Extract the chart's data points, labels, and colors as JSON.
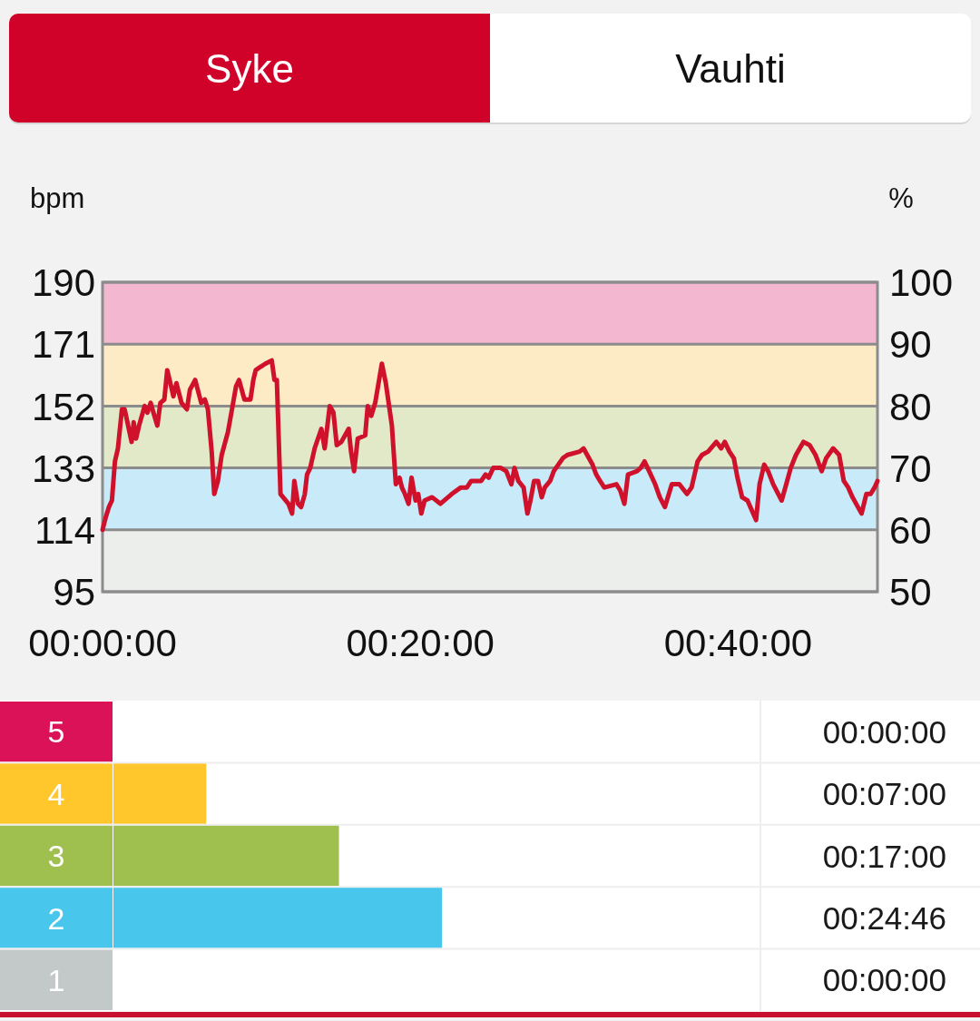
{
  "chart_data": [
    {
      "type": "line",
      "annotations": [
        "Syke",
        "Vauhti"
      ],
      "ylabel": "bpm",
      "y2label": "%",
      "color": "#d0112b",
      "x": [
        0,
        0.21,
        0.4,
        0.59,
        0.78,
        0.97,
        1.22,
        1.39,
        1.83,
        1.96,
        2.11,
        2.3,
        2.65,
        2.82,
        3.03,
        3.2,
        3.45,
        3.64,
        3.89,
        4.07,
        4.27,
        4.46,
        4.65,
        4.97,
        5.31,
        5.5,
        5.83,
        6.21,
        6.44,
        6.63,
        6.87,
        7.03,
        7.26,
        7.5,
        7.89,
        8.11,
        8.4,
        8.59,
        8.93,
        9.31,
        9.49,
        9.64,
        9.93,
        10.25,
        10.65,
        10.82,
        10.97,
        11.2,
        11.7,
        11.93,
        12.07,
        12.3,
        12.5,
        12.73,
        12.87,
        13.07,
        13.35,
        13.77,
        13.98,
        14.3,
        14.53,
        14.74,
        15.03,
        15.49,
        15.64,
        15.83,
        16.06,
        16.53,
        16.69,
        16.91,
        17.16,
        17.58,
        17.83,
        18.21,
        18.46,
        18.69,
        18.84,
        19.03,
        19.26,
        19.45,
        19.7,
        19.87,
        20.06,
        20.27,
        20.74,
        21.26,
        21.98,
        22.55,
        22.93,
        23.2,
        23.83,
        24.11,
        24.3,
        24.59,
        25.07,
        25.41,
        25.73,
        25.93,
        26.17,
        26.5,
        26.74,
        26.93,
        27.16,
        27.41,
        27.64,
        27.83,
        28.17,
        28.4,
        28.97,
        29.26,
        30.02,
        30.27,
        30.84,
        31.07,
        31.31,
        31.58,
        32.34,
        32.59,
        32.84,
        33.07,
        33.64,
        33.87,
        34.11,
        34.4,
        34.78,
        35.07,
        35.39,
        35.83,
        36.3,
        36.78,
        37.07,
        37.45,
        37.73,
        38.11,
        38.63,
        38.93,
        39.16,
        39.45,
        39.73,
        39.96,
        40.25,
        40.59,
        41.13,
        41.35,
        41.64,
        41.89,
        42.21,
        42.74,
        43.03,
        43.31,
        43.64,
        44.11,
        44.5,
        44.87,
        45.26,
        45.54,
        45.98,
        46.36,
        46.65,
        46.93,
        47.2,
        47.77,
        48.07,
        48.34,
        48.59,
        48.77
      ],
      "values": [
        114,
        118,
        121,
        123,
        135,
        139,
        151,
        151,
        141,
        147,
        142,
        146,
        152,
        150,
        153,
        150,
        146,
        153,
        154,
        163,
        159,
        155,
        159,
        153,
        151,
        157,
        160,
        153,
        154,
        151,
        138,
        125,
        129,
        137,
        144,
        150,
        158,
        160,
        154,
        154,
        160,
        163,
        164,
        165,
        166,
        160,
        160,
        125,
        122,
        119,
        129,
        122,
        121,
        125,
        131,
        133,
        139,
        145,
        139,
        152,
        150,
        140,
        141,
        145,
        138,
        132,
        142,
        143,
        152,
        149,
        153,
        165,
        159,
        146,
        128,
        130,
        127,
        125,
        122,
        130,
        123,
        125,
        119,
        123,
        124,
        122,
        125,
        127,
        127,
        129,
        129,
        131,
        130,
        133,
        133,
        132,
        128,
        133,
        129,
        127,
        119,
        123,
        129,
        129,
        124,
        127,
        129,
        132,
        136,
        137,
        138,
        139,
        134,
        131,
        129,
        127,
        128,
        126,
        122,
        131,
        132,
        133,
        135,
        132,
        128,
        124,
        121,
        128,
        128,
        125,
        127,
        135,
        137,
        138,
        141,
        139,
        141,
        138,
        136,
        130,
        124,
        123,
        117,
        128,
        134,
        132,
        128,
        123,
        128,
        133,
        137,
        141,
        140,
        137,
        132,
        136,
        139,
        137,
        129,
        127,
        124,
        119,
        125,
        125,
        127,
        129
      ],
      "xlim": [
        0,
        48.77
      ],
      "xticks": [
        {
          "value": 0,
          "label": "00:00:00"
        },
        {
          "value": 20,
          "label": "00:20:00"
        },
        {
          "value": 40,
          "label": "00:40:00"
        }
      ],
      "ylim": [
        95,
        190
      ],
      "yticks": [
        95,
        114,
        133,
        152,
        171,
        190
      ],
      "y2lim": [
        50,
        100
      ],
      "y2ticks": [
        50,
        60,
        70,
        80,
        90,
        100
      ],
      "grid": "y",
      "bands": [
        {
          "axis": "y",
          "from": 95,
          "to": 114,
          "color": "#eceeec"
        },
        {
          "axis": "y",
          "from": 114,
          "to": 133,
          "color": "#c9eaf8"
        },
        {
          "axis": "y",
          "from": 133,
          "to": 152,
          "color": "#e2e9c9"
        },
        {
          "axis": "y",
          "from": 152,
          "to": 171,
          "color": "#fdebc5"
        },
        {
          "axis": "y",
          "from": 171,
          "to": 190,
          "color": "#f3b8cf"
        }
      ]
    },
    {
      "type": "bar",
      "orientation": "horizontal",
      "categories": [
        "5",
        "4",
        "3",
        "2",
        "1"
      ],
      "values": [
        0,
        7,
        17,
        24.77,
        0
      ],
      "colors": [
        "#dc1259",
        "#ffc72c",
        "#9fbf4f",
        "#48c6eb",
        "#c3c9c8"
      ],
      "tick_labels": "y",
      "value_labels": [
        "00:00:00",
        "00:07:00",
        "00:17:00",
        "00:24:46",
        "00:00:00"
      ]
    }
  ]
}
